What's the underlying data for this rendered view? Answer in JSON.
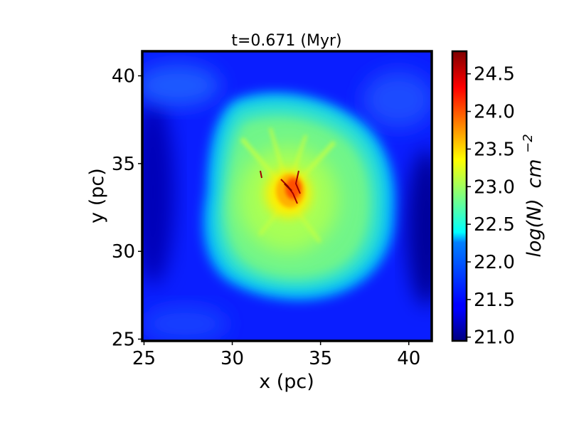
{
  "chart_data": {
    "type": "heatmap",
    "title": "t=0.671 (Myr)",
    "xlabel": "x (pc)",
    "ylabel": "y (pc)",
    "xlim": [
      24.9,
      41.3
    ],
    "ylim": [
      24.9,
      41.4
    ],
    "x_ticks": [
      25,
      30,
      35,
      40
    ],
    "x_tick_labels": [
      "25",
      "30",
      "35",
      "40"
    ],
    "y_ticks": [
      25,
      30,
      35,
      40
    ],
    "y_tick_labels": [
      "25",
      "30",
      "35",
      "40"
    ],
    "colorbar": {
      "label_main": "log(N)",
      "label_unit": "cm",
      "label_exponent": "−2",
      "range": [
        20.95,
        24.8
      ],
      "ticks": [
        21.0,
        21.5,
        22.0,
        22.5,
        23.0,
        23.5,
        24.0,
        24.5
      ],
      "tick_labels": [
        "21.0",
        "21.5",
        "22.0",
        "22.5",
        "23.0",
        "23.5",
        "24.0",
        "24.5"
      ],
      "colormap": "jet"
    },
    "field_description": {
      "background_level": 21.6,
      "cloud_level": 22.4,
      "cloud_center": [
        33.0,
        33.2
      ],
      "core_peak_level": 24.6,
      "core_center": [
        33.4,
        33.5
      ]
    },
    "grid": false,
    "colors": {
      "frame": "#000000",
      "background": "#ffffff"
    }
  }
}
